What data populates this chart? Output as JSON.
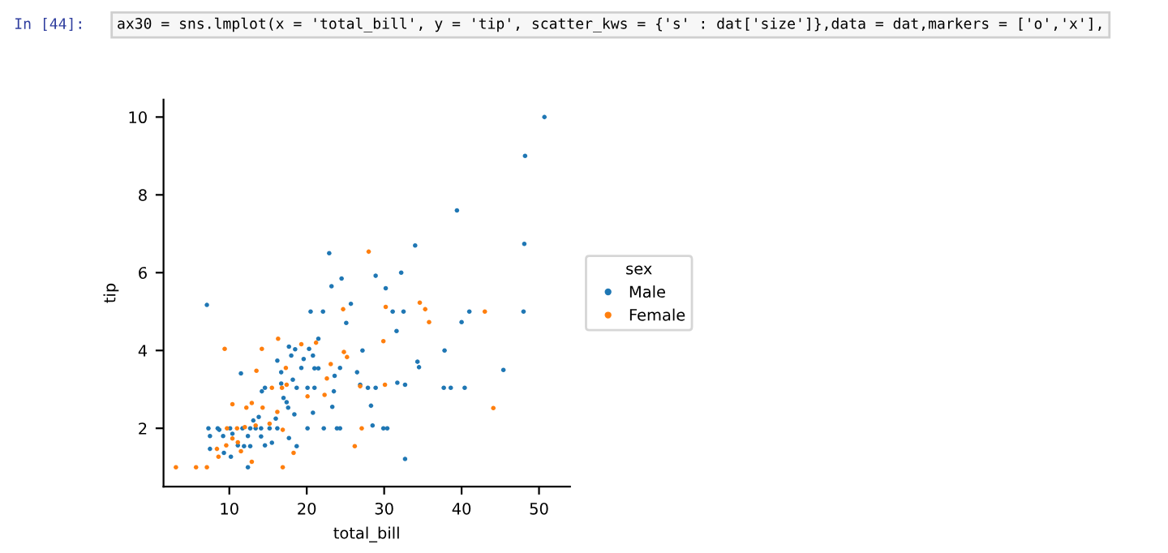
{
  "chart_data": {
    "type": "scatter",
    "xlabel": "total_bill",
    "ylabel": "tip",
    "legend_title": "sex",
    "legend": "right",
    "marker": "circle",
    "grid": false,
    "annotations": [
      "In [44]:",
      "ax30 = sns.lmplot(x = 'total_bill', y = 'tip', scatter_kws = {'s' : dat['size']},data = dat,markers = ['o','x'],"
    ],
    "xlim": [
      1.5,
      54
    ],
    "ylim": [
      0.5,
      10.45
    ],
    "xticks": [
      10,
      20,
      30,
      40,
      50
    ],
    "yticks": [
      2,
      4,
      6,
      8,
      10
    ],
    "series": [
      {
        "name": "Male",
        "color": "#1f77b4",
        "x": [
          50.7,
          48.2,
          39.4,
          48.1,
          34.0,
          22.9,
          32.2,
          28.9,
          24.5,
          23.2,
          30.2,
          7.1,
          25.7,
          20.5,
          22.1,
          31.1,
          32.5,
          41.0,
          48.0,
          40.0,
          25.1,
          31.6,
          21.5,
          18.0,
          20.3,
          27.2,
          37.8,
          17.7,
          18.5,
          16.2,
          19.6,
          34.3,
          34.5,
          45.4,
          24.3,
          19.3,
          20.8,
          21.0,
          21.5,
          11.5,
          16.7,
          23.6,
          26.5,
          14.6,
          16.7,
          18.2,
          18.7,
          20.1,
          21.0,
          26.9,
          27.9,
          28.9,
          31.7,
          32.7,
          37.7,
          38.6,
          40.4,
          14.2,
          23.5,
          17.0,
          17.4,
          17.6,
          18.4,
          20.8,
          28.3,
          23.3,
          10.1,
          7.3,
          8.5,
          11.7,
          12.7,
          13.4,
          14.1,
          15.2,
          16.2,
          20.1,
          22.2,
          23.9,
          24.3,
          28.5,
          29.9,
          30.4,
          8.7,
          7.5,
          9.2,
          10.4,
          12.4,
          14.1,
          15.5,
          17.7,
          7.5,
          9.3,
          10.2,
          11.1,
          11.9,
          12.7,
          14.6,
          18.7,
          12.4,
          32.7,
          13.1,
          13.8,
          16.0
        ],
        "values": [
          10.0,
          9.0,
          7.6,
          6.74,
          6.7,
          6.5,
          6.0,
          5.92,
          5.85,
          5.65,
          5.6,
          5.17,
          5.2,
          5.0,
          5.0,
          5.0,
          5.0,
          5.0,
          5.0,
          4.73,
          4.71,
          4.5,
          4.3,
          3.87,
          4.04,
          4.0,
          4.0,
          4.1,
          4.03,
          3.74,
          3.78,
          3.71,
          3.57,
          3.5,
          3.55,
          3.55,
          3.87,
          3.54,
          3.54,
          3.41,
          3.44,
          3.35,
          3.44,
          3.04,
          3.15,
          3.25,
          3.04,
          3.04,
          3.04,
          3.12,
          3.04,
          3.04,
          3.17,
          3.12,
          3.04,
          3.04,
          3.04,
          2.95,
          2.95,
          2.78,
          2.67,
          2.53,
          2.36,
          2.4,
          2.58,
          2.55,
          2.0,
          2.0,
          2.0,
          2.0,
          2.0,
          2.0,
          2.0,
          2.0,
          2.0,
          2.0,
          2.0,
          2.0,
          2.0,
          2.07,
          2.0,
          2.0,
          1.96,
          1.8,
          1.8,
          1.86,
          1.8,
          1.79,
          1.63,
          1.75,
          1.47,
          1.37,
          1.27,
          1.56,
          1.54,
          1.54,
          1.56,
          1.54,
          1.0,
          1.21,
          2.2,
          2.29,
          2.25
        ]
      },
      {
        "name": "Female",
        "color": "#ff7f0e",
        "x": [
          28.0,
          30.2,
          34.6,
          35.3,
          35.8,
          43.0,
          29.9,
          24.7,
          21.2,
          16.3,
          14.2,
          9.4,
          19.3,
          25.2,
          23.1,
          17.3,
          13.5,
          22.6,
          24.8,
          15.5,
          16.8,
          17.4,
          20.1,
          30.1,
          26.9,
          12.2,
          14.3,
          16.2,
          10.4,
          12.9,
          44.1,
          27.1,
          9.7,
          11.0,
          12.0,
          13.4,
          15.2,
          10.4,
          11.1,
          9.6,
          8.4,
          8.6,
          12.9,
          16.9,
          3.1,
          5.7,
          7.1,
          26.2,
          18.3,
          11.5,
          16.9,
          22.3
        ],
        "values": [
          6.54,
          5.12,
          5.23,
          5.06,
          4.73,
          5.0,
          4.24,
          5.06,
          4.2,
          4.3,
          4.04,
          4.04,
          4.16,
          3.83,
          3.65,
          3.55,
          3.48,
          3.28,
          3.96,
          3.04,
          3.04,
          3.12,
          2.82,
          3.12,
          3.08,
          2.53,
          2.53,
          2.42,
          2.62,
          2.65,
          2.52,
          2.0,
          2.0,
          2.0,
          2.03,
          2.07,
          2.12,
          1.74,
          1.64,
          1.56,
          1.47,
          1.27,
          1.14,
          1.0,
          1.0,
          1.0,
          1.0,
          1.54,
          1.37,
          1.41,
          1.96,
          2.86
        ]
      }
    ]
  }
}
